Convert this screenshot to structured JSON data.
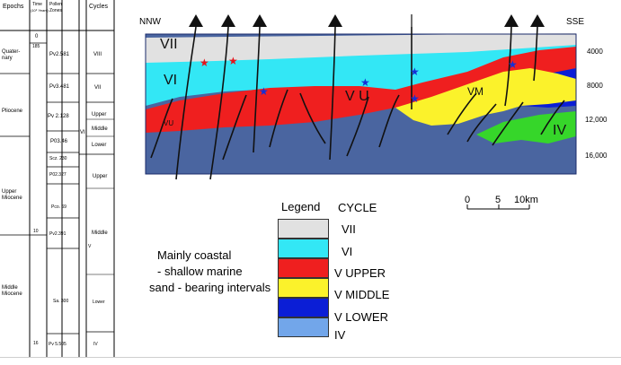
{
  "table": {
    "headers": {
      "epochs": "Epochs",
      "time": "Time",
      "time_unit": "(10⁶ Years)",
      "pollen": "Pollen",
      "zones": "Zones",
      "cycles": "Cycles"
    },
    "time_marks": [
      "0",
      "185",
      "10",
      "16"
    ],
    "epochs": [
      "Quater-",
      "nary",
      "Pliocene",
      "Upper",
      "Miocene",
      "Middle",
      "Miocene"
    ],
    "pollen_zones": [
      "Pv2.581",
      "Pv3.481",
      "Pv 2.128",
      "P03.46",
      "Scz. 230",
      "P02.327",
      "Pco. 69",
      "Pv2.391",
      "Sa. 300",
      "Pv 5.505"
    ],
    "cycles": [
      "VIII",
      "VII",
      "Upper",
      "Middle",
      "Lower",
      "VI",
      "Upper",
      "Middle",
      "V",
      "Lower",
      "IV"
    ]
  },
  "section": {
    "left_label": "NNW",
    "right_label": "SSE",
    "depths": [
      "4000",
      "8000",
      "12,000",
      "16,000"
    ],
    "unit_labels": [
      "VII",
      "VI",
      "VU",
      "V U",
      "VM",
      "IV"
    ]
  },
  "legend": {
    "title": "Legend",
    "column_title": "CYCLE",
    "items": [
      {
        "label": "VII",
        "color": "#e1e1e1"
      },
      {
        "label": "VI",
        "color": "#33e7f5"
      },
      {
        "label": "V UPPER",
        "color": "#ef1f1f"
      },
      {
        "label": "V MIDDLE",
        "color": "#fbf22b"
      },
      {
        "label": "V LOWER",
        "color": "#0b1ed6"
      },
      {
        "label": "IV",
        "color": "#72a6ea"
      }
    ]
  },
  "scale": {
    "ticks": [
      "0",
      "5",
      "10km"
    ]
  },
  "note": {
    "lines": [
      "Mainly coastal",
      "- shallow marine",
      "sand - bearing intervals"
    ]
  },
  "colors": {
    "basement": "#4a65a0",
    "star_red": "#e4141c",
    "star_blue": "#1530d6",
    "fault": "#111111"
  }
}
